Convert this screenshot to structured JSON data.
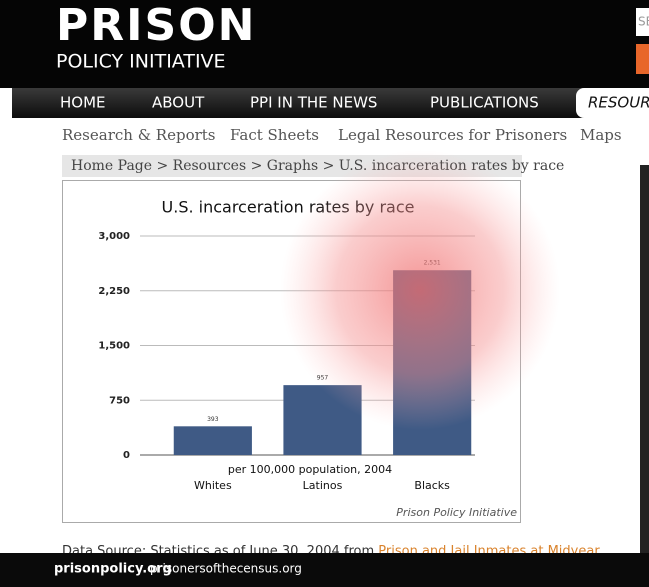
{
  "header": {
    "logo_line1": "PRISON",
    "logo_line2": "POLICY INITIATIVE",
    "search_placeholder": "SEARCH"
  },
  "nav": [
    "HOME",
    "ABOUT",
    "PPI IN THE NEWS",
    "PUBLICATIONS",
    "RESOURCES"
  ],
  "subnav": [
    "Research & Reports",
    "Fact Sheets",
    "Legal Resources for Prisoners",
    "Maps"
  ],
  "breadcrumb": "Home Page > Resources > Graphs > U.S. incarceration rates by race",
  "chart_data": {
    "type": "bar",
    "title": "U.S. incarceration rates by race",
    "categories": [
      "Whites",
      "Latinos",
      "Blacks"
    ],
    "values": [
      393,
      957,
      2531
    ],
    "value_labels": [
      "393",
      "957",
      "2,531"
    ],
    "color": "#3f5a85",
    "ylim": [
      0,
      3000
    ],
    "yticks": [
      0,
      750,
      {
        "value": 1500,
        "label": "1,500"
      },
      {
        "value": 2250,
        "label": "2,250"
      },
      {
        "value": 3000,
        "label": "3,000"
      }
    ],
    "grid": true,
    "xlabel": "per 100,000 population, 2004",
    "credit": "Prison Policy Initiative"
  },
  "source": {
    "text": "Data Source: Statistics as of June 30, 2004 from ",
    "link": "Prison and Jail Inmates at Midyear"
  },
  "footer": [
    "prisonpolicy.org",
    "prisonersofthecensus.org"
  ]
}
